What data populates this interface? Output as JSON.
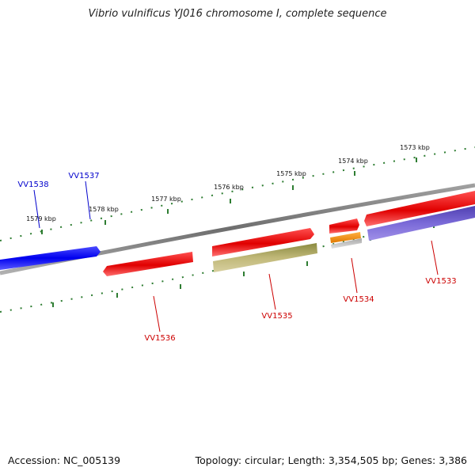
{
  "title": "Vibrio vulnificus YJ016 chromosome I, complete sequence",
  "footer": {
    "accession": "Accession: NC_005139",
    "summary": "Topology: circular; Length: 3,354,505 bp; Genes: 3,386"
  },
  "colors": {
    "backbone": "#808080",
    "tick": "#2e7d32",
    "label_forward": "#0000cc",
    "label_reverse": "#cc0000"
  },
  "scale_labels": [
    "1579 kbp",
    "1578 kbp",
    "1577 kbp",
    "1576 kbp",
    "1575 kbp",
    "1574 kbp",
    "1573 kbp"
  ],
  "genes": [
    {
      "label": "VV1538",
      "color": "#0000ee"
    },
    {
      "label": "VV1537",
      "color": "#0000ee"
    },
    {
      "label": "VV1536",
      "color": "#ee0000"
    },
    {
      "label": "VV1535",
      "color": "#ee0000"
    },
    {
      "label": "VV1534",
      "color": "#ee0000"
    },
    {
      "label": "VV1533",
      "color": "#ee0000"
    }
  ],
  "features": [
    {
      "kind": "feature",
      "color": "#b8b070"
    },
    {
      "kind": "feature",
      "color": "#f08c00"
    },
    {
      "kind": "feature",
      "color": "#c8c8c8"
    },
    {
      "kind": "feature",
      "color": "#7060cc"
    }
  ]
}
